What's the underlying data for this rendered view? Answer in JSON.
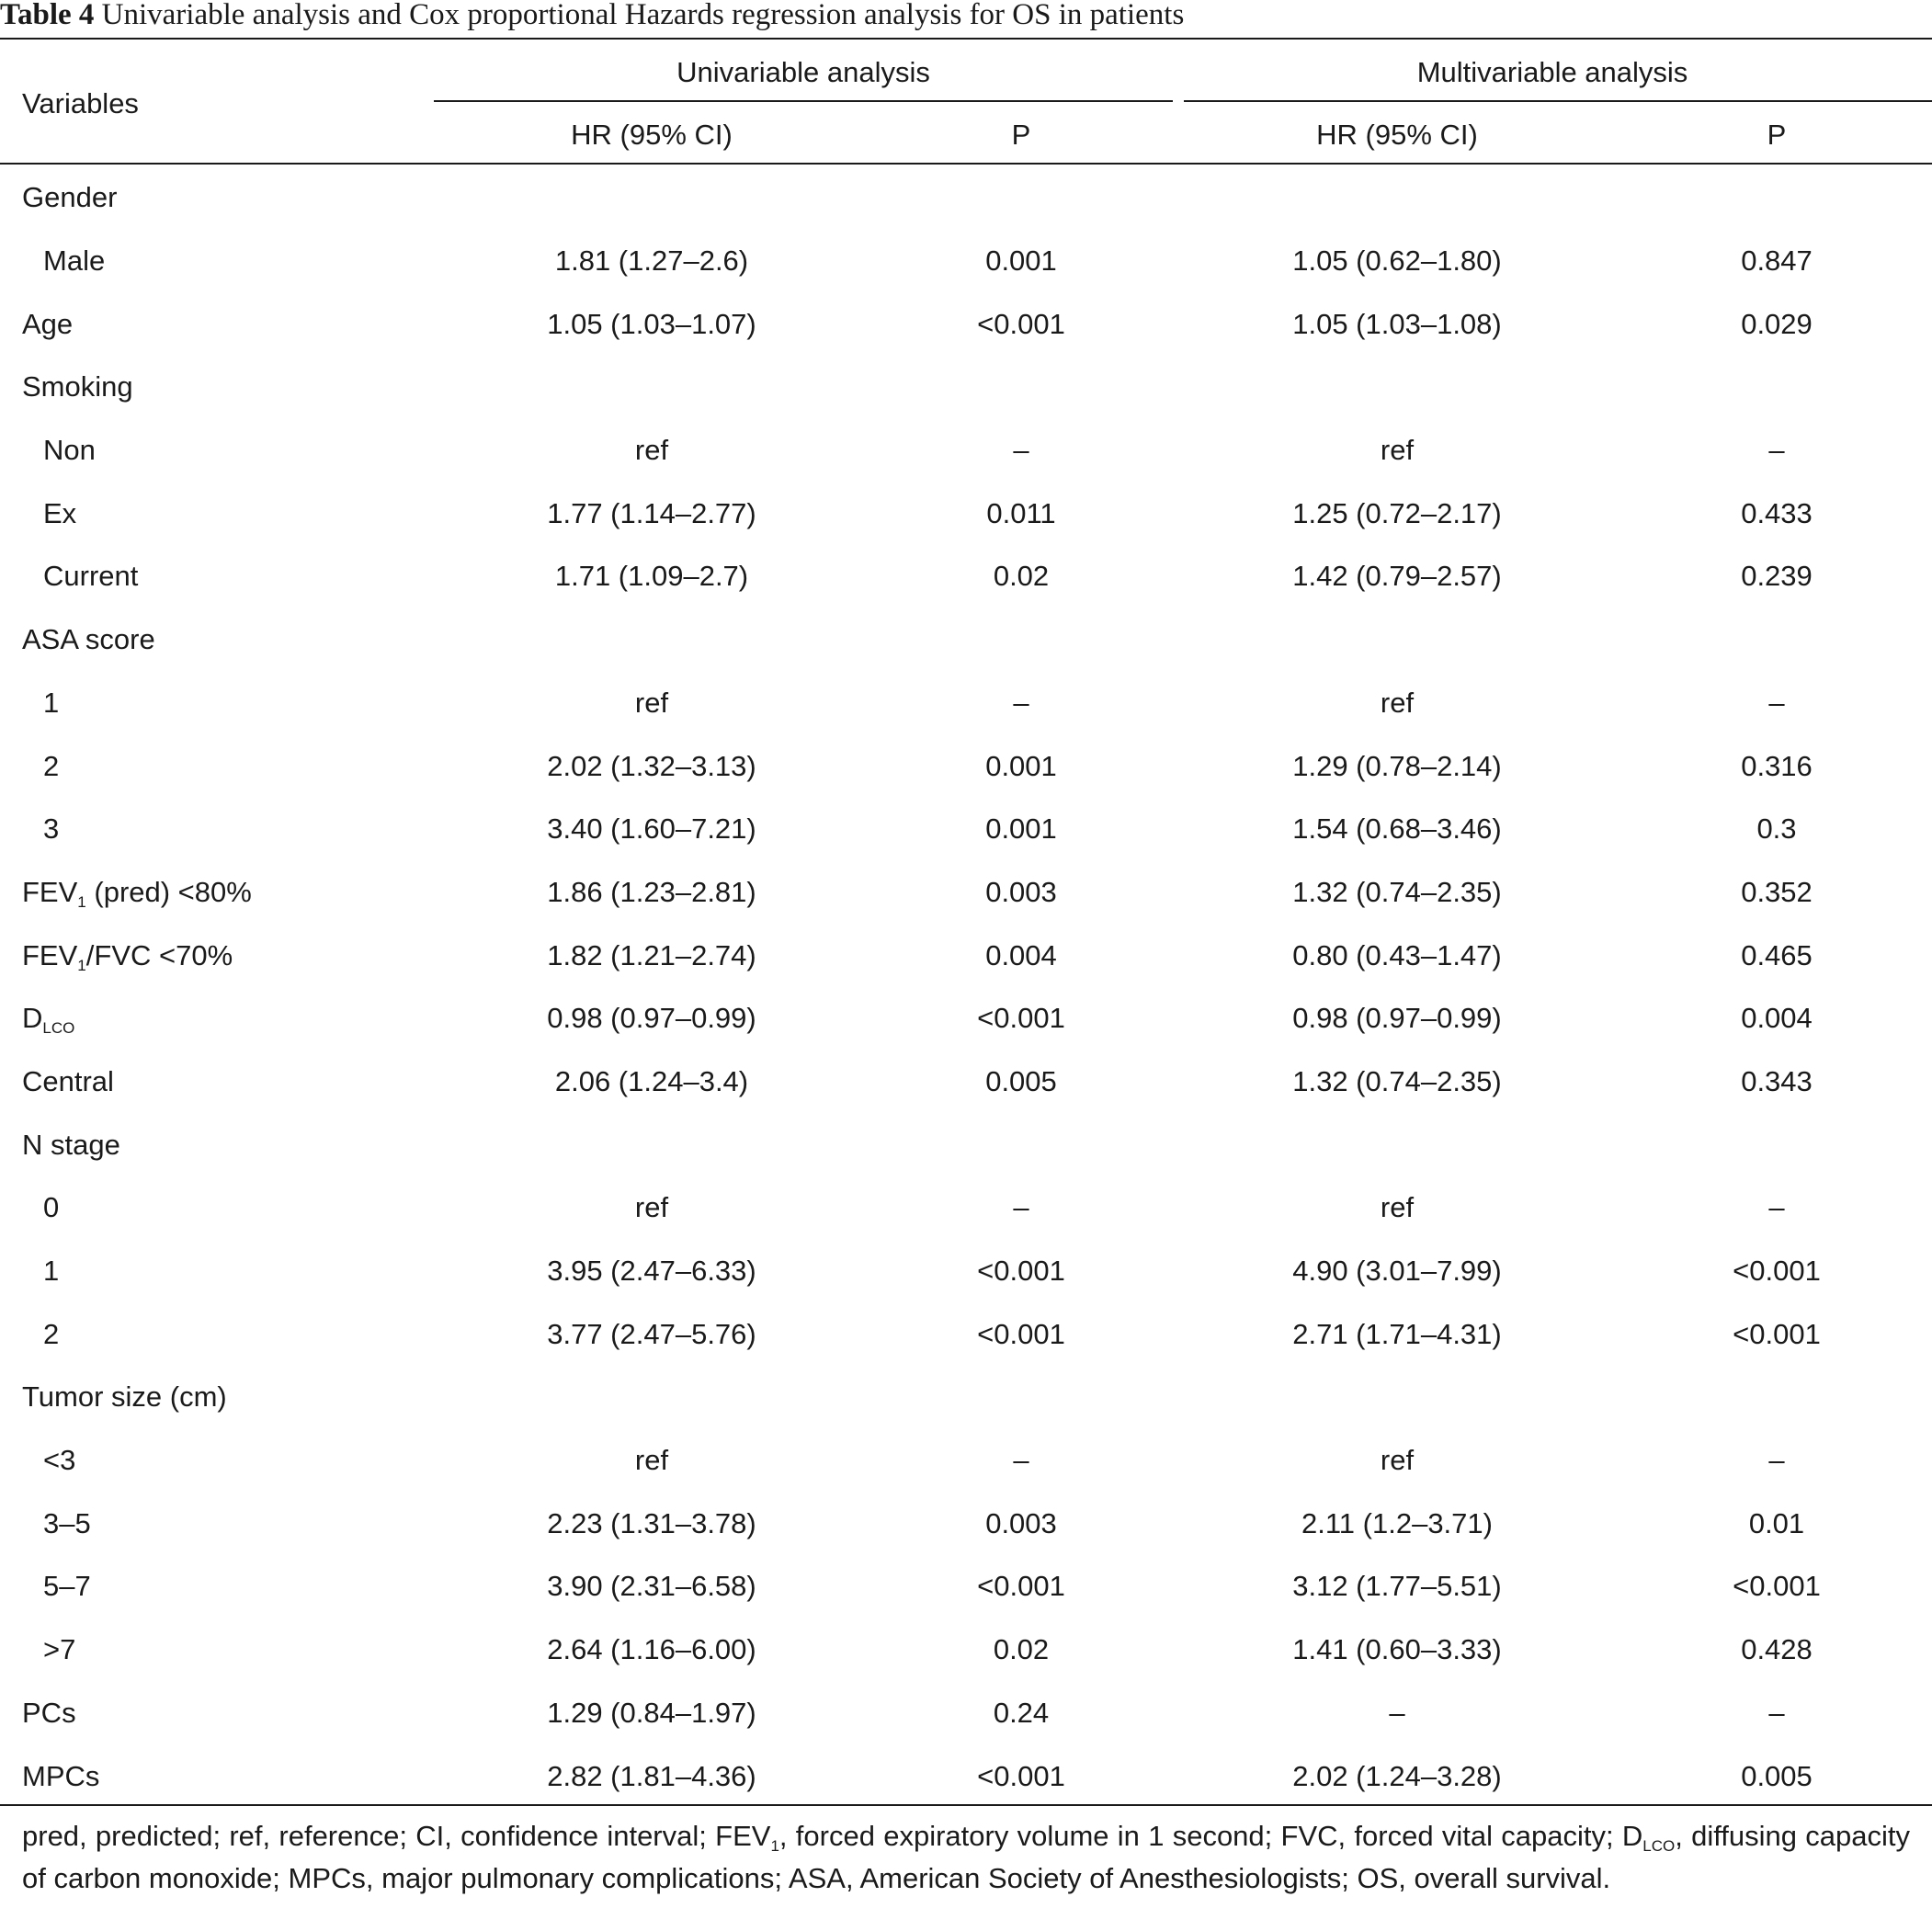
{
  "caption": {
    "label": "Table 4",
    "text": "Univariable analysis and Cox proportional Hazards regression analysis for OS in patients"
  },
  "header": {
    "variables": "Variables",
    "univariable": "Univariable analysis",
    "multivariable": "Multivariable analysis",
    "hr_ci": "HR (95% CI)",
    "p": "P"
  },
  "rows": [
    {
      "label": "Gender",
      "indent": false,
      "uni_hr": "",
      "uni_p": "",
      "multi_hr": "",
      "multi_p": ""
    },
    {
      "label": "Male",
      "indent": true,
      "uni_hr": "1.81 (1.27–2.6)",
      "uni_p": "0.001",
      "multi_hr": "1.05 (0.62–1.80)",
      "multi_p": "0.847"
    },
    {
      "label": "Age",
      "indent": false,
      "uni_hr": "1.05 (1.03–1.07)",
      "uni_p": "<0.001",
      "multi_hr": "1.05 (1.03–1.08)",
      "multi_p": "0.029"
    },
    {
      "label": "Smoking",
      "indent": false,
      "uni_hr": "",
      "uni_p": "",
      "multi_hr": "",
      "multi_p": ""
    },
    {
      "label": "Non",
      "indent": true,
      "uni_hr": "ref",
      "uni_p": "–",
      "multi_hr": "ref",
      "multi_p": "–"
    },
    {
      "label": "Ex",
      "indent": true,
      "uni_hr": "1.77 (1.14–2.77)",
      "uni_p": "0.011",
      "multi_hr": "1.25 (0.72–2.17)",
      "multi_p": "0.433"
    },
    {
      "label": "Current",
      "indent": true,
      "uni_hr": "1.71 (1.09–2.7)",
      "uni_p": "0.02",
      "multi_hr": "1.42 (0.79–2.57)",
      "multi_p": "0.239"
    },
    {
      "label": "ASA score",
      "indent": false,
      "uni_hr": "",
      "uni_p": "",
      "multi_hr": "",
      "multi_p": ""
    },
    {
      "label": "1",
      "indent": true,
      "uni_hr": "ref",
      "uni_p": "–",
      "multi_hr": "ref",
      "multi_p": "–"
    },
    {
      "label": "2",
      "indent": true,
      "uni_hr": "2.02 (1.32–3.13)",
      "uni_p": "0.001",
      "multi_hr": "1.29 (0.78–2.14)",
      "multi_p": "0.316"
    },
    {
      "label": "3",
      "indent": true,
      "uni_hr": "3.40 (1.60–7.21)",
      "uni_p": "0.001",
      "multi_hr": "1.54 (0.68–3.46)",
      "multi_p": "0.3"
    },
    {
      "label": "FEV",
      "label_sub": "1",
      "label_after": " (pred) <80%",
      "indent": false,
      "uni_hr": "1.86 (1.23–2.81)",
      "uni_p": "0.003",
      "multi_hr": "1.32 (0.74–2.35)",
      "multi_p": "0.352"
    },
    {
      "label": "FEV",
      "label_sub": "1",
      "label_after": "/FVC <70%",
      "indent": false,
      "uni_hr": "1.82 (1.21–2.74)",
      "uni_p": "0.004",
      "multi_hr": "0.80 (0.43–1.47)",
      "multi_p": "0.465"
    },
    {
      "label": "D",
      "label_sub": "LCO",
      "label_after": "",
      "indent": false,
      "uni_hr": "0.98 (0.97–0.99)",
      "uni_p": "<0.001",
      "multi_hr": "0.98 (0.97–0.99)",
      "multi_p": "0.004"
    },
    {
      "label": "Central",
      "indent": false,
      "uni_hr": "2.06 (1.24–3.4)",
      "uni_p": "0.005",
      "multi_hr": "1.32 (0.74–2.35)",
      "multi_p": "0.343"
    },
    {
      "label": "N stage",
      "indent": false,
      "uni_hr": "",
      "uni_p": "",
      "multi_hr": "",
      "multi_p": ""
    },
    {
      "label": "0",
      "indent": true,
      "uni_hr": "ref",
      "uni_p": "–",
      "multi_hr": "ref",
      "multi_p": "–"
    },
    {
      "label": "1",
      "indent": true,
      "uni_hr": "3.95 (2.47–6.33)",
      "uni_p": "<0.001",
      "multi_hr": "4.90 (3.01–7.99)",
      "multi_p": "<0.001"
    },
    {
      "label": "2",
      "indent": true,
      "uni_hr": "3.77 (2.47–5.76)",
      "uni_p": "<0.001",
      "multi_hr": "2.71 (1.71–4.31)",
      "multi_p": "<0.001"
    },
    {
      "label": "Tumor size (cm)",
      "indent": false,
      "uni_hr": "",
      "uni_p": "",
      "multi_hr": "",
      "multi_p": ""
    },
    {
      "label": "<3",
      "indent": true,
      "uni_hr": "ref",
      "uni_p": "–",
      "multi_hr": "ref",
      "multi_p": "–"
    },
    {
      "label": "3–5",
      "indent": true,
      "uni_hr": "2.23 (1.31–3.78)",
      "uni_p": "0.003",
      "multi_hr": "2.11 (1.2–3.71)",
      "multi_p": "0.01"
    },
    {
      "label": "5–7",
      "indent": true,
      "uni_hr": "3.90 (2.31–6.58)",
      "uni_p": "<0.001",
      "multi_hr": "3.12 (1.77–5.51)",
      "multi_p": "<0.001"
    },
    {
      "label": ">7",
      "indent": true,
      "uni_hr": "2.64 (1.16–6.00)",
      "uni_p": "0.02",
      "multi_hr": "1.41 (0.60–3.33)",
      "multi_p": "0.428"
    },
    {
      "label": "PCs",
      "indent": false,
      "uni_hr": "1.29 (0.84–1.97)",
      "uni_p": "0.24",
      "multi_hr": "–",
      "multi_p": "–"
    },
    {
      "label": "MPCs",
      "indent": false,
      "uni_hr": "2.82 (1.81–4.36)",
      "uni_p": "<0.001",
      "multi_hr": "2.02 (1.24–3.28)",
      "multi_p": "0.005"
    }
  ],
  "footnote": {
    "part1": "pred, predicted; ref, reference; CI, confidence interval; FEV",
    "sub1": "1",
    "part2": ", forced expiratory volume in 1 second; FVC, forced vital capacity; D",
    "sub2": "LCO",
    "part3": ", diffusing capacity of carbon monoxide; MPCs, major pulmonary complications; ASA, American Society of Anesthesiologists; OS, overall survival."
  }
}
